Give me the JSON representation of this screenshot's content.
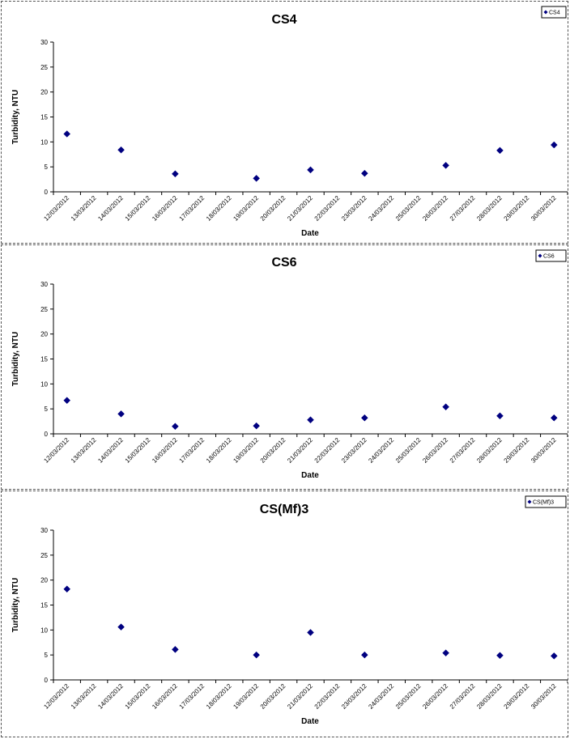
{
  "chart_data": [
    {
      "type": "scatter",
      "title": "CS4",
      "xlabel": "Date",
      "ylabel": "Turbidity, NTU",
      "ylim": [
        0,
        30
      ],
      "yticks": [
        0,
        5,
        10,
        15,
        20,
        25,
        30
      ],
      "categories": [
        "12/03/2012",
        "13/03/2012",
        "14/03/2012",
        "15/03/2012",
        "16/03/2012",
        "17/03/2012",
        "18/03/2012",
        "19/03/2012",
        "20/03/2012",
        "21/03/2012",
        "22/03/2012",
        "23/03/2012",
        "24/03/2012",
        "25/03/2012",
        "26/03/2012",
        "27/03/2012",
        "28/03/2012",
        "29/03/2012",
        "30/03/2012"
      ],
      "legend_position": "top-right",
      "marker_color": "#000080",
      "series": [
        {
          "name": "CS4",
          "x": [
            "12/03/2012",
            "14/03/2012",
            "16/03/2012",
            "19/03/2012",
            "21/03/2012",
            "23/03/2012",
            "26/03/2012",
            "28/03/2012",
            "30/03/2012"
          ],
          "y": [
            11.6,
            8.4,
            3.6,
            2.7,
            4.4,
            3.7,
            5.3,
            8.3,
            9.4
          ]
        }
      ]
    },
    {
      "type": "scatter",
      "title": "CS6",
      "xlabel": "Date",
      "ylabel": "Turbidity, NTU",
      "ylim": [
        0,
        30
      ],
      "yticks": [
        0,
        5,
        10,
        15,
        20,
        25,
        30
      ],
      "categories": [
        "12/03/2012",
        "13/03/2012",
        "14/03/2012",
        "15/03/2012",
        "16/03/2012",
        "17/03/2012",
        "18/03/2012",
        "19/03/2012",
        "20/03/2012",
        "21/03/2012",
        "22/03/2012",
        "23/03/2012",
        "24/03/2012",
        "25/03/2012",
        "26/03/2012",
        "27/03/2012",
        "28/03/2012",
        "29/03/2012",
        "30/03/2012"
      ],
      "legend_position": "top-right",
      "marker_color": "#000080",
      "series": [
        {
          "name": "CS6",
          "x": [
            "12/03/2012",
            "14/03/2012",
            "16/03/2012",
            "19/03/2012",
            "21/03/2012",
            "23/03/2012",
            "26/03/2012",
            "28/03/2012",
            "30/03/2012"
          ],
          "y": [
            6.7,
            4.0,
            1.5,
            1.6,
            2.8,
            3.2,
            5.4,
            3.6,
            3.2
          ]
        }
      ]
    },
    {
      "type": "scatter",
      "title": "CS(Mf)3",
      "xlabel": "Date",
      "ylabel": "Turbidity, NTU",
      "ylim": [
        0,
        30
      ],
      "yticks": [
        0,
        5,
        10,
        15,
        20,
        25,
        30
      ],
      "categories": [
        "12/03/2012",
        "13/03/2012",
        "14/03/2012",
        "15/03/2012",
        "16/03/2012",
        "17/03/2012",
        "18/03/2012",
        "19/03/2012",
        "20/03/2012",
        "21/03/2012",
        "22/03/2012",
        "23/03/2012",
        "24/03/2012",
        "25/03/2012",
        "26/03/2012",
        "27/03/2012",
        "28/03/2012",
        "29/03/2012",
        "30/03/2012"
      ],
      "legend_position": "top-right",
      "marker_color": "#000080",
      "series": [
        {
          "name": "CS(Mf)3",
          "x": [
            "12/03/2012",
            "14/03/2012",
            "16/03/2012",
            "19/03/2012",
            "21/03/2012",
            "23/03/2012",
            "26/03/2012",
            "28/03/2012",
            "30/03/2012"
          ],
          "y": [
            18.2,
            10.6,
            6.1,
            5.0,
            9.5,
            5.0,
            5.4,
            4.9,
            4.8
          ]
        }
      ]
    }
  ]
}
